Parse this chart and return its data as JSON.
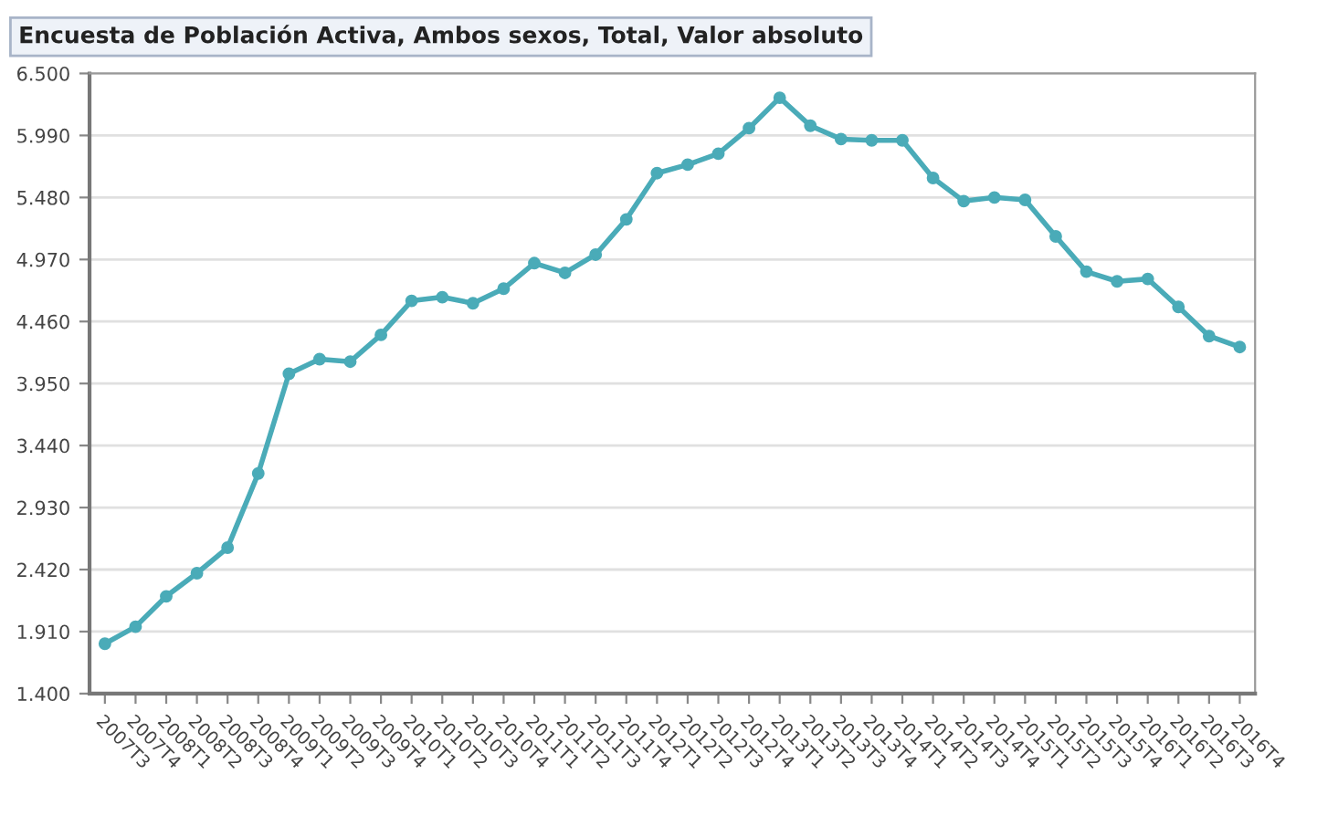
{
  "chart_data": {
    "type": "line",
    "title": "Encuesta de Población Activa, Ambos sexos, Total, Valor absoluto",
    "categories": [
      "2007T3",
      "2007T4",
      "2008T1",
      "2008T2",
      "2008T3",
      "2008T4",
      "2009T1",
      "2009T2",
      "2009T3",
      "2009T4",
      "2010T1",
      "2010T2",
      "2010T3",
      "2010T4",
      "2011T1",
      "2011T2",
      "2011T3",
      "2011T4",
      "2012T1",
      "2012T2",
      "2012T3",
      "2012T4",
      "2013T1",
      "2013T2",
      "2013T3",
      "2013T4",
      "2014T1",
      "2014T2",
      "2014T3",
      "2014T4",
      "2015T1",
      "2015T2",
      "2015T3",
      "2015T4",
      "2016T1",
      "2016T2",
      "2016T3",
      "2016T4"
    ],
    "series": [
      {
        "color": "#4aabb8",
        "values": [
          1810,
          1950,
          2200,
          2390,
          2600,
          3210,
          4030,
          4150,
          4130,
          4350,
          4630,
          4660,
          4610,
          4730,
          4940,
          4860,
          5010,
          5300,
          5680,
          5750,
          5840,
          6050,
          6300,
          6070,
          5960,
          5950,
          5950,
          5640,
          5450,
          5480,
          5460,
          5160,
          4870,
          4790,
          4810,
          4580,
          4340,
          4250
        ]
      }
    ],
    "ylim": [
      1400,
      6500
    ],
    "yticks": [
      {
        "value": 1400,
        "label": "1.400"
      },
      {
        "value": 1910,
        "label": "1.910"
      },
      {
        "value": 2420,
        "label": "2.420"
      },
      {
        "value": 2930,
        "label": "2.930"
      },
      {
        "value": 3440,
        "label": "3.440"
      },
      {
        "value": 3950,
        "label": "3.950"
      },
      {
        "value": 4460,
        "label": "4.460"
      },
      {
        "value": 4970,
        "label": "4.970"
      },
      {
        "value": 5480,
        "label": "5.480"
      },
      {
        "value": 5990,
        "label": "5.990"
      },
      {
        "value": 6500,
        "label": "6.500"
      }
    ],
    "grid": "y",
    "marker": "circle",
    "line_style": "solid"
  }
}
